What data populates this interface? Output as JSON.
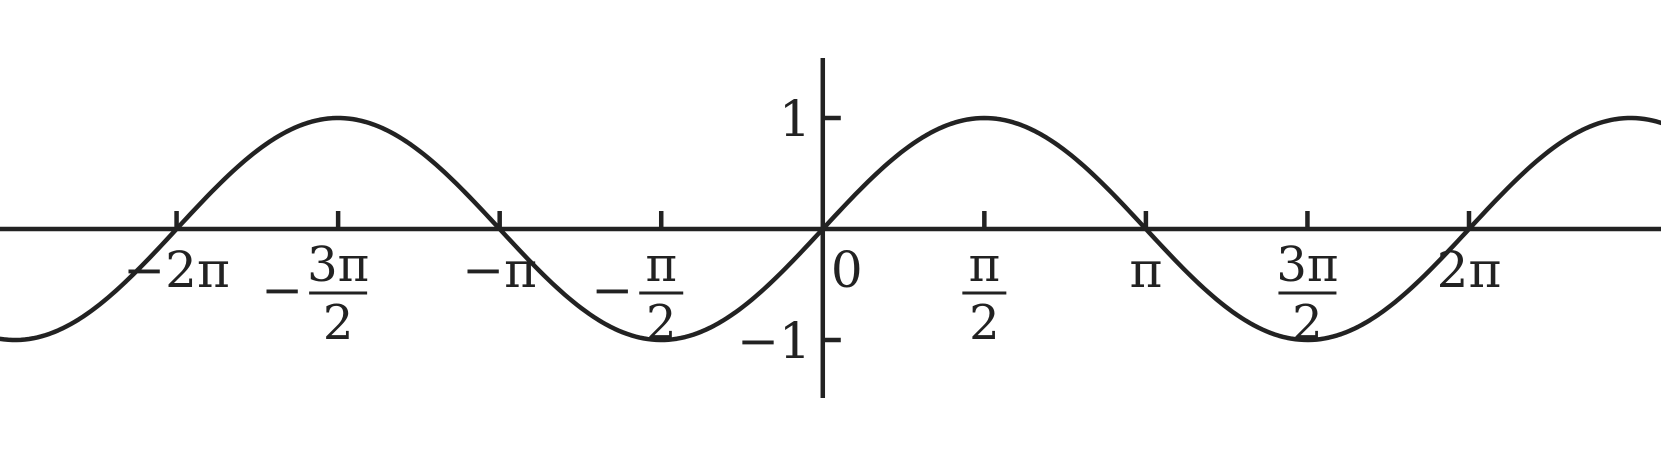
{
  "chart_data": {
    "type": "line",
    "function": "sin(x)",
    "title": "",
    "xlabel": "",
    "ylabel": "",
    "xlim": [
      -8.0,
      8.15
    ],
    "ylim": [
      -1.55,
      1.6
    ],
    "grid": false,
    "legend": "none",
    "x_ticks": [
      {
        "value": -6.2832,
        "label": "−2π",
        "num": "",
        "den": ""
      },
      {
        "value": -4.7124,
        "label": "",
        "sign": "−",
        "num": "3π",
        "den": "2"
      },
      {
        "value": -3.1416,
        "label": "−π",
        "num": "",
        "den": ""
      },
      {
        "value": -1.5708,
        "label": "",
        "sign": "−",
        "num": "π",
        "den": "2"
      },
      {
        "value": 0,
        "label": "0",
        "num": "",
        "den": ""
      },
      {
        "value": 1.5708,
        "label": "",
        "sign": "",
        "num": "π",
        "den": "2"
      },
      {
        "value": 3.1416,
        "label": "π",
        "num": "",
        "den": ""
      },
      {
        "value": 4.7124,
        "label": "",
        "sign": "",
        "num": "3π",
        "den": "2"
      },
      {
        "value": 6.2832,
        "label": "2π",
        "num": "",
        "den": ""
      }
    ],
    "y_ticks": [
      {
        "value": 1,
        "label": "1"
      },
      {
        "value": -1,
        "label": "−1"
      }
    ],
    "series": [
      {
        "x_range": [
          -8.0,
          8.15
        ],
        "samples": 400
      }
    ],
    "color": "#222222"
  }
}
